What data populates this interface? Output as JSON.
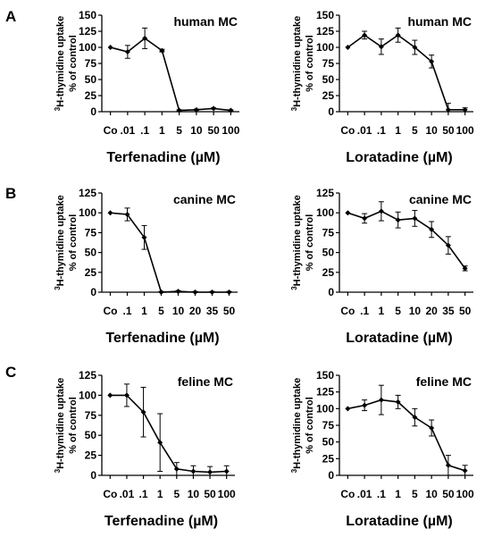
{
  "rows": [
    {
      "letter": "A",
      "charts": [
        {
          "chart_data": {
            "type": "line",
            "subtitle": "human MC",
            "ylabel_line1": "H-thymidine uptake",
            "ylabel_sup": "3",
            "ylabel_line2": "% of control",
            "xlabel": "Terfenadine (µM)",
            "categories": [
              "Co",
              ".01",
              ".1",
              "1",
              "5",
              "10",
              "50",
              "100"
            ],
            "values": [
              100,
              93,
              114,
              95,
              2,
              3,
              5,
              2
            ],
            "errors": [
              0,
              10,
              16,
              2,
              1,
              1,
              1,
              1
            ],
            "yticks": [
              0,
              25,
              50,
              75,
              100,
              125,
              150
            ],
            "ylim": [
              0,
              150
            ]
          }
        },
        {
          "chart_data": {
            "type": "line",
            "subtitle": "human MC",
            "ylabel_line1": "H-thymidine uptake",
            "ylabel_sup": "3",
            "ylabel_line2": "% of control",
            "xlabel": "Loratadine (µM)",
            "categories": [
              "Co",
              ".01",
              ".1",
              "1",
              "5",
              "10",
              "50",
              "100"
            ],
            "values": [
              100,
              119,
              101,
              119,
              100,
              78,
              3,
              3
            ],
            "errors": [
              0,
              6,
              12,
              11,
              11,
              10,
              10,
              3
            ],
            "yticks": [
              0,
              25,
              50,
              75,
              100,
              125,
              150
            ],
            "ylim": [
              0,
              150
            ]
          }
        }
      ]
    },
    {
      "letter": "B",
      "charts": [
        {
          "chart_data": {
            "type": "line",
            "subtitle": "canine MC",
            "ylabel_line1": "H-thymidine uptake",
            "ylabel_sup": "3",
            "ylabel_line2": "% of control",
            "xlabel": "Terfenadine (µM)",
            "categories": [
              "Co",
              ".1",
              "1",
              "5",
              "10",
              "20",
              "35",
              "50"
            ],
            "values": [
              100,
              98,
              69,
              0,
              1,
              0,
              0,
              0
            ],
            "errors": [
              0,
              8,
              15,
              1,
              1,
              1,
              1,
              1
            ],
            "yticks": [
              0,
              25,
              50,
              75,
              100,
              125
            ],
            "ylim": [
              0,
              125
            ]
          }
        },
        {
          "chart_data": {
            "type": "line",
            "subtitle": "canine MC",
            "ylabel_line1": "H-thymidine uptake",
            "ylabel_sup": "3",
            "ylabel_line2": "% of control",
            "xlabel": "Loratadine (µM)",
            "categories": [
              "Co",
              ".1",
              "1",
              "5",
              "10",
              "20",
              "35",
              "50"
            ],
            "values": [
              100,
              93,
              102,
              91,
              93,
              79,
              59,
              30
            ],
            "errors": [
              0,
              6,
              12,
              10,
              10,
              10,
              11,
              3
            ],
            "yticks": [
              0,
              25,
              50,
              75,
              100,
              125
            ],
            "ylim": [
              0,
              125
            ]
          }
        }
      ]
    },
    {
      "letter": "C",
      "charts": [
        {
          "chart_data": {
            "type": "line",
            "subtitle": "feline MC",
            "ylabel_line1": "H-thymidine uptake",
            "ylabel_sup": "3",
            "ylabel_line2": "% of control",
            "xlabel": "Terfenadine (µM)",
            "categories": [
              "Co",
              ".01",
              ".1",
              "1",
              "5",
              "10",
              "50",
              "100"
            ],
            "values": [
              100,
              100,
              79,
              41,
              8,
              5,
              4,
              5
            ],
            "errors": [
              0,
              14,
              31,
              36,
              8,
              7,
              7,
              7
            ],
            "yticks": [
              0,
              25,
              50,
              75,
              100,
              125
            ],
            "ylim": [
              0,
              125
            ]
          }
        },
        {
          "chart_data": {
            "type": "line",
            "subtitle": "feline MC",
            "ylabel_line1": "H-thymidine uptake",
            "ylabel_sup": "3",
            "ylabel_line2": "% of control",
            "xlabel": "Loratadine (µM)",
            "categories": [
              "Co",
              ".01",
              ".1",
              "1",
              "5",
              "10",
              "50",
              "100"
            ],
            "values": [
              100,
              105,
              113,
              110,
              87,
              71,
              15,
              7
            ],
            "errors": [
              0,
              8,
              22,
              10,
              13,
              12,
              15,
              8
            ],
            "yticks": [
              0,
              25,
              50,
              75,
              100,
              125,
              150
            ],
            "ylim": [
              0,
              150
            ]
          }
        }
      ]
    }
  ]
}
